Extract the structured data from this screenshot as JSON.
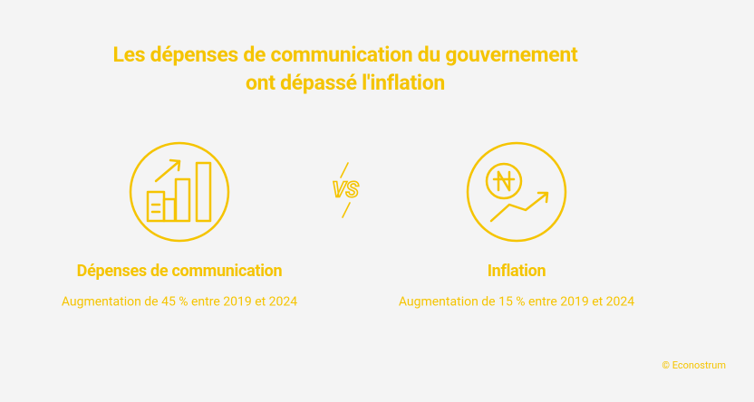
{
  "header": {
    "title_lines": [
      "Les dépenses de communication du gouvernement",
      "ont dépassé l'inflation"
    ]
  },
  "vs_label": "VS",
  "items": [
    {
      "label": "Dépenses de communication",
      "description": "Augmentation de 45 % entre 2019 et 2024"
    },
    {
      "label": "Inflation",
      "description": "Augmentation de 15 % entre 2019 et 2024"
    }
  ],
  "footer": {
    "credit": "© Econostrum"
  }
}
